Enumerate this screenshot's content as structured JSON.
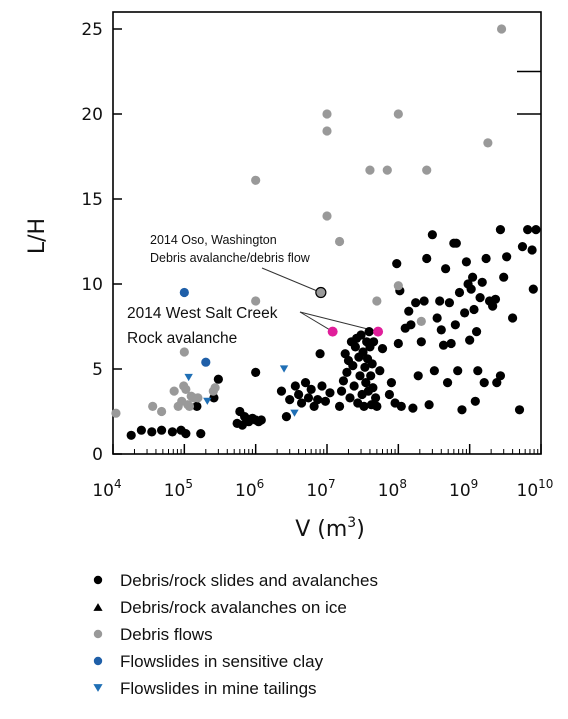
{
  "chart_data": {
    "type": "scatter",
    "xlabel": "V (m",
    "xlabel_sup": "3",
    "xlabel_close": ")",
    "ylabel": "L/H",
    "x_scale": "log",
    "xlim": [
      10000,
      10000000000
    ],
    "ylim": [
      0,
      26
    ],
    "x_ticks": [
      {
        "value": 10000,
        "base": "10",
        "exp": "4"
      },
      {
        "value": 100000,
        "base": "10",
        "exp": "5"
      },
      {
        "value": 1000000,
        "base": "10",
        "exp": "6"
      },
      {
        "value": 10000000,
        "base": "10",
        "exp": "7"
      },
      {
        "value": 100000000,
        "base": "10",
        "exp": "8"
      },
      {
        "value": 1000000000,
        "base": "10",
        "exp": "9"
      },
      {
        "value": 10000000000,
        "base": "10",
        "exp": "10"
      }
    ],
    "y_ticks": [
      0,
      5,
      10,
      15,
      20,
      25
    ],
    "grid": false,
    "legend_position": "below",
    "series": [
      {
        "name": "Debris/rock slides and avalanches",
        "marker": "circle",
        "color": "#000000",
        "points": [
          [
            18000,
            1.1
          ],
          [
            25000,
            1.4
          ],
          [
            35000,
            1.3
          ],
          [
            48000,
            1.4
          ],
          [
            68000,
            1.3
          ],
          [
            90000,
            1.4
          ],
          [
            105000,
            1.2
          ],
          [
            150000,
            2.8
          ],
          [
            170000,
            1.2
          ],
          [
            260000,
            3.3
          ],
          [
            300000,
            4.4
          ],
          [
            600000,
            2.5
          ],
          [
            700000,
            2.2
          ],
          [
            800000,
            1.9
          ],
          [
            900000,
            2.1
          ],
          [
            1000000,
            2.0
          ],
          [
            1100000,
            1.9
          ],
          [
            1200000,
            2.0
          ],
          [
            550000,
            1.8
          ],
          [
            650000,
            1.7
          ],
          [
            1000000,
            4.8
          ],
          [
            2300000,
            3.7
          ],
          [
            2700000,
            2.2
          ],
          [
            3000000,
            3.2
          ],
          [
            3600000,
            4.0
          ],
          [
            4000000,
            3.5
          ],
          [
            4400000,
            3.0
          ],
          [
            5000000,
            4.2
          ],
          [
            5500000,
            3.3
          ],
          [
            6000000,
            3.8
          ],
          [
            6600000,
            2.8
          ],
          [
            7400000,
            3.2
          ],
          [
            8000000,
            5.9
          ],
          [
            8500000,
            4.0
          ],
          [
            9500000,
            3.1
          ],
          [
            11000000,
            3.6
          ],
          [
            15000000,
            2.8
          ],
          [
            16000000,
            3.7
          ],
          [
            17000000,
            4.3
          ],
          [
            18000000,
            5.9
          ],
          [
            19000000,
            4.8
          ],
          [
            20000000,
            5.5
          ],
          [
            21000000,
            3.3
          ],
          [
            22000000,
            6.6
          ],
          [
            23000000,
            5.2
          ],
          [
            24000000,
            4.0
          ],
          [
            25000000,
            6.3
          ],
          [
            26000000,
            6.8
          ],
          [
            27000000,
            3.0
          ],
          [
            28000000,
            5.7
          ],
          [
            29000000,
            4.6
          ],
          [
            30000000,
            7.0
          ],
          [
            31000000,
            3.5
          ],
          [
            32000000,
            6.0
          ],
          [
            33000000,
            2.8
          ],
          [
            34000000,
            5.1
          ],
          [
            35000000,
            4.2
          ],
          [
            36000000,
            6.6
          ],
          [
            37000000,
            5.6
          ],
          [
            38000000,
            3.7
          ],
          [
            39000000,
            7.2
          ],
          [
            40000000,
            6.3
          ],
          [
            41000000,
            4.6
          ],
          [
            42000000,
            2.9
          ],
          [
            43000000,
            5.3
          ],
          [
            44000000,
            3.9
          ],
          [
            45000000,
            6.6
          ],
          [
            48000000,
            3.3
          ],
          [
            50000000,
            2.8
          ],
          [
            55000000,
            4.9
          ],
          [
            60000000,
            6.2
          ],
          [
            75000000,
            3.5
          ],
          [
            80000000,
            4.2
          ],
          [
            90000000,
            3.0
          ],
          [
            95000000,
            11.2
          ],
          [
            100000000,
            6.5
          ],
          [
            105000000,
            9.6
          ],
          [
            110000000,
            2.8
          ],
          [
            125000000,
            7.4
          ],
          [
            140000000,
            8.4
          ],
          [
            150000000,
            7.6
          ],
          [
            160000000,
            2.7
          ],
          [
            175000000,
            8.9
          ],
          [
            190000000,
            4.6
          ],
          [
            210000000,
            6.6
          ],
          [
            230000000,
            9.0
          ],
          [
            250000000,
            11.5
          ],
          [
            270000000,
            2.9
          ],
          [
            300000000,
            12.9
          ],
          [
            320000000,
            4.9
          ],
          [
            350000000,
            8.0
          ],
          [
            380000000,
            9.0
          ],
          [
            400000000,
            7.3
          ],
          [
            430000000,
            6.4
          ],
          [
            460000000,
            10.9
          ],
          [
            490000000,
            4.2
          ],
          [
            520000000,
            8.9
          ],
          [
            550000000,
            6.5
          ],
          [
            600000000,
            12.4
          ],
          [
            630000000,
            7.6
          ],
          [
            680000000,
            4.9
          ],
          [
            720000000,
            9.5
          ],
          [
            780000000,
            2.6
          ],
          [
            850000000,
            8.3
          ],
          [
            900000000,
            11.3
          ],
          [
            950000000,
            10.0
          ],
          [
            1000000000,
            6.7
          ],
          [
            1050000000,
            9.7
          ],
          [
            1100000000,
            10.4
          ],
          [
            1150000000,
            8.5
          ],
          [
            1200000000,
            3.1
          ],
          [
            1250000000,
            7.2
          ],
          [
            1300000000,
            4.9
          ],
          [
            1400000000,
            9.2
          ],
          [
            1500000000,
            10.1
          ],
          [
            1600000000,
            4.2
          ],
          [
            1700000000,
            11.5
          ],
          [
            1900000000,
            9.0
          ],
          [
            2100000000,
            8.7
          ],
          [
            2400000000,
            4.2
          ],
          [
            2700000000,
            4.6
          ],
          [
            3000000000,
            10.4
          ],
          [
            3300000000,
            11.6
          ],
          [
            4000000000,
            8.0
          ],
          [
            5000000000,
            2.6
          ],
          [
            5500000000,
            12.2
          ],
          [
            6500000000,
            13.2
          ],
          [
            7500000000,
            12.0
          ],
          [
            7800000000,
            9.7
          ],
          [
            8500000000,
            13.2
          ],
          [
            2700000000,
            13.2
          ],
          [
            2300000000,
            9.1
          ],
          [
            650000000,
            12.4
          ]
        ]
      },
      {
        "name": "Debris/rock avalanches on ice",
        "marker": "triangle-up",
        "color": "#000000",
        "points": []
      },
      {
        "name": "Debris flows",
        "marker": "circle",
        "color": "#999999",
        "points": [
          [
            11000,
            2.4
          ],
          [
            36000,
            2.8
          ],
          [
            48000,
            2.5
          ],
          [
            72000,
            3.7
          ],
          [
            82000,
            2.8
          ],
          [
            92000,
            3.1
          ],
          [
            98000,
            4.0
          ],
          [
            105000,
            3.8
          ],
          [
            112000,
            2.9
          ],
          [
            118000,
            2.8
          ],
          [
            125000,
            3.4
          ],
          [
            135000,
            3.3
          ],
          [
            155000,
            3.3
          ],
          [
            255000,
            3.7
          ],
          [
            270000,
            3.9
          ],
          [
            100000,
            6.0
          ],
          [
            1000000,
            16.1
          ],
          [
            1000000,
            9.0
          ],
          [
            10000000,
            20.0
          ],
          [
            10000000,
            19.0
          ],
          [
            10000000,
            14.0
          ],
          [
            15000000,
            12.5
          ],
          [
            40000000,
            16.7
          ],
          [
            50000000,
            9.0
          ],
          [
            70000000,
            16.7
          ],
          [
            100000000,
            20.0
          ],
          [
            100000000,
            9.9
          ],
          [
            210000000,
            7.8
          ],
          [
            250000000,
            16.7
          ],
          [
            1800000000,
            18.3
          ],
          [
            2800000000,
            25.0
          ]
        ]
      },
      {
        "name": "Flowslides in sensitive clay",
        "marker": "circle",
        "color": "#1f5fa8",
        "points": [
          [
            100000,
            9.5
          ],
          [
            200000,
            5.4
          ]
        ]
      },
      {
        "name": "Flowslides in mine tailings",
        "marker": "triangle-down",
        "color": "#1f6fb5",
        "points": [
          [
            115000,
            4.5
          ],
          [
            210000,
            3.1
          ],
          [
            2500000,
            5.0
          ],
          [
            3500000,
            2.4
          ]
        ]
      }
    ],
    "highlighted": [
      {
        "x": 8200000,
        "y": 9.5,
        "color": "#9a9a9a",
        "label_key": "oso"
      },
      {
        "x": 12000000,
        "y": 7.2,
        "color": "#e01e9a",
        "label_key": "wsc"
      },
      {
        "x": 52000000,
        "y": 7.2,
        "color": "#e01e9a",
        "label_key": "wsc"
      }
    ],
    "annotations": {
      "oso": {
        "line1": "2014 Oso, Washington",
        "line2": "Debris avalanche/debris flow"
      },
      "wsc": {
        "line1": "2014 West Salt Creek",
        "line2": "Rock avalanche"
      }
    }
  },
  "legend": [
    {
      "label": "Debris/rock slides and avalanches",
      "marker": "circle",
      "color": "#000000"
    },
    {
      "label": "Debris/rock avalanches on ice",
      "marker": "triangle-up",
      "color": "#000000"
    },
    {
      "label": "Debris flows",
      "marker": "circle",
      "color": "#999999"
    },
    {
      "label": "Flowslides in sensitive clay",
      "marker": "circle",
      "color": "#1f5fa8"
    },
    {
      "label": "Flowslides in mine tailings",
      "marker": "triangle-down",
      "color": "#1f6fb5"
    }
  ]
}
